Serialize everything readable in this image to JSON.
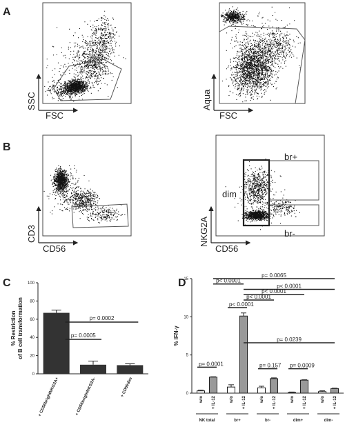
{
  "panel_labels": [
    "A",
    "B",
    "C",
    "D"
  ],
  "flow_plots": [
    {
      "x_label": "FSC",
      "y_label": "SSC"
    },
    {
      "x_label": "FSC",
      "y_label": "Aqua"
    },
    {
      "x_label": "CD56",
      "y_label": "CD3"
    },
    {
      "x_label": "CD56",
      "y_label": "NKG2A",
      "gate_labels": [
        "br+",
        "dim",
        "br-"
      ]
    }
  ],
  "chart_data": [
    {
      "type": "bar",
      "y_label": [
        "% Restriction",
        "of B cell transformation"
      ],
      "categories": [
        "+ CD56brightNKG2A+",
        "+ CD56brightNKG2A-",
        "+ CD56dim"
      ],
      "values": [
        67,
        10,
        9.5
      ],
      "errors": [
        3,
        4,
        1.5
      ],
      "color": "#333333",
      "ylim": [
        0,
        100
      ],
      "yticks": [
        0,
        20,
        40,
        60,
        80,
        100
      ],
      "annotations": [
        "p= 0.0005",
        "p= 0.0002"
      ]
    },
    {
      "type": "grouped_bar",
      "y_label": "% IFN-γ",
      "categories": [
        "NK total",
        "br+",
        "br-",
        "dim+",
        "dim-"
      ],
      "series": [
        {
          "name": "w/o",
          "color": "#ffffff",
          "values": [
            0.3,
            0.8,
            0.7,
            0.1,
            0.2
          ],
          "errors": [
            0.1,
            0.3,
            0.2,
            0.05,
            0.1
          ]
        },
        {
          "name": "+ IL-12",
          "color": "#999999",
          "values": [
            2.1,
            10.1,
            1.9,
            1.7,
            0.6
          ],
          "errors": [
            0.05,
            0.4,
            0.1,
            0.05,
            0.05
          ]
        }
      ],
      "ylim": [
        0,
        15
      ],
      "yticks": [
        0,
        5,
        10,
        15
      ],
      "annotations": [
        "p= 0.0065",
        "p< 0.0001",
        "p< 0.0001",
        "p< 0.0001",
        "p< 0.0001",
        "p< 0.0001",
        "p= 0.0239",
        "p= 0.0001",
        "p= 0.157",
        "p= 0.0009"
      ]
    }
  ]
}
